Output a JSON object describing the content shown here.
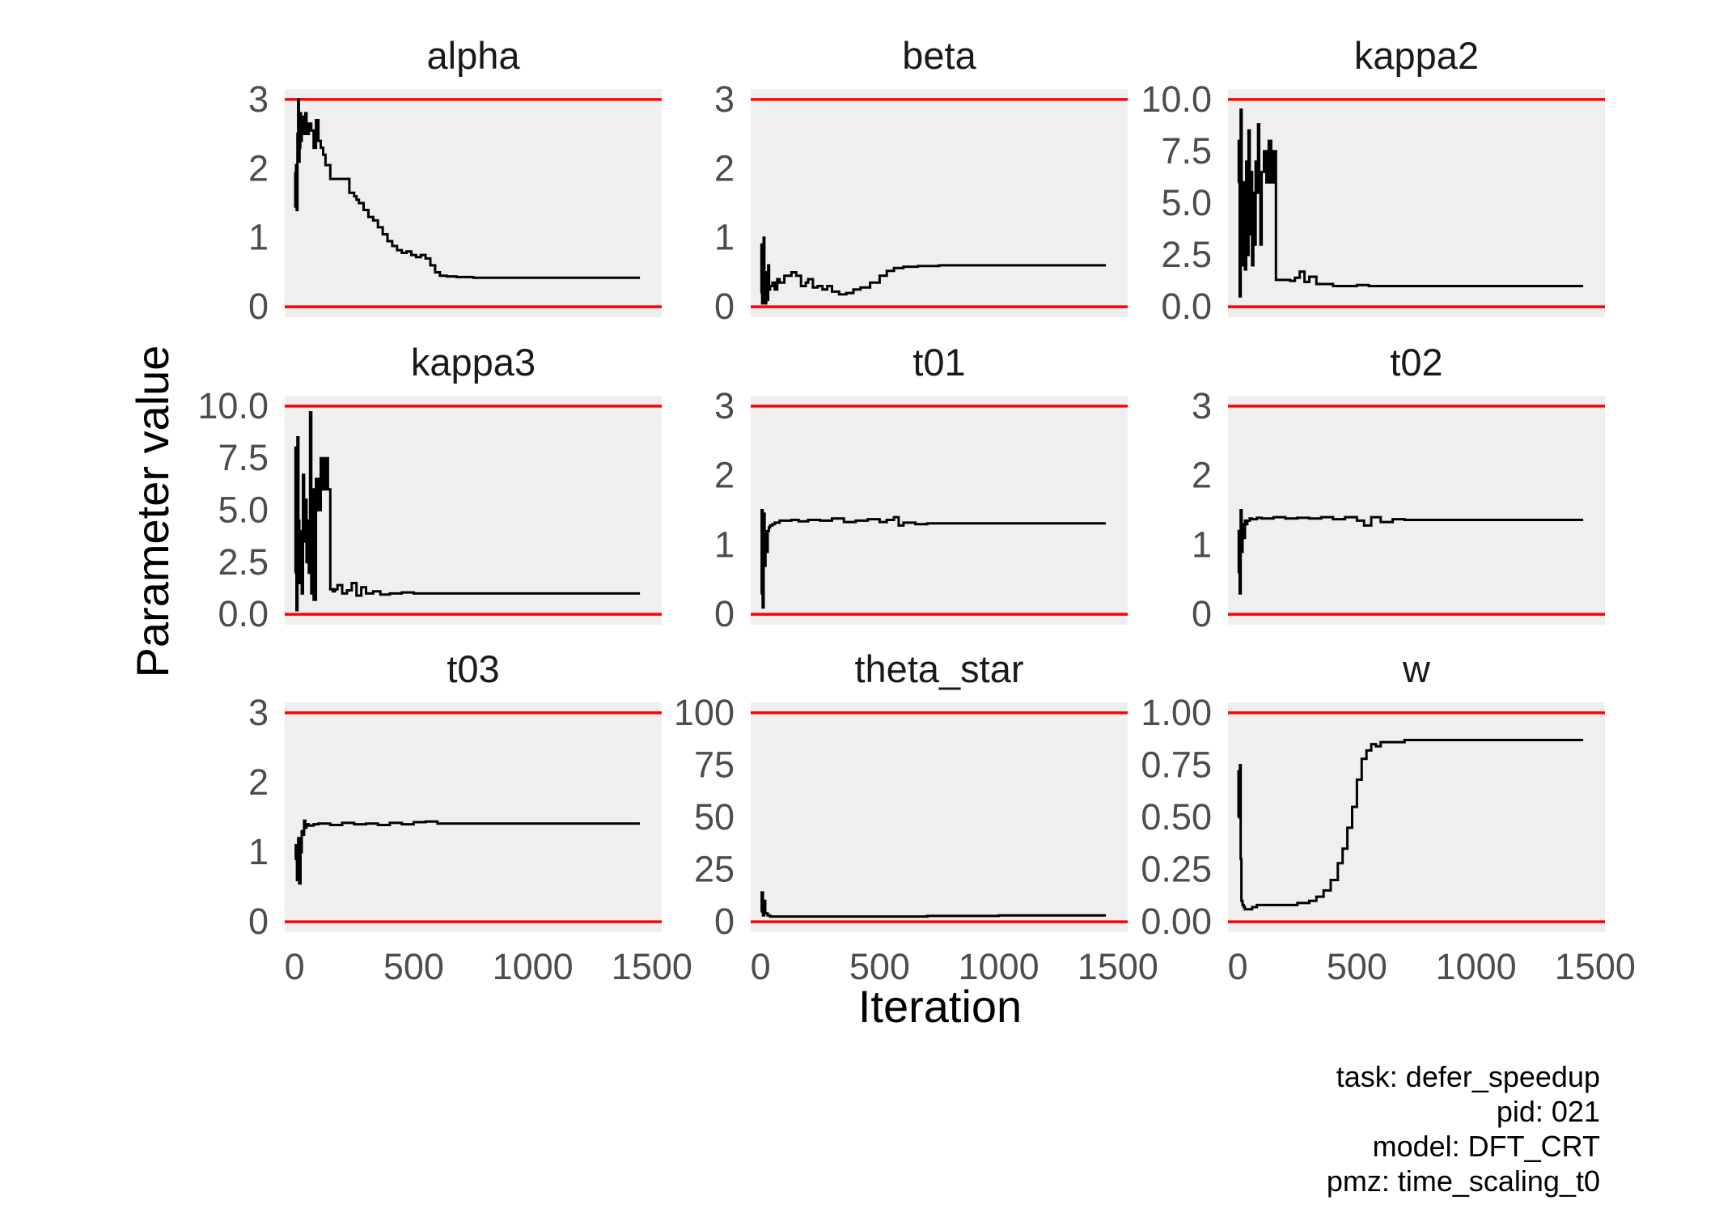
{
  "chart_data": {
    "type": "line",
    "layout": "facet-grid-3x3",
    "xlabel": "Iteration",
    "ylabel": "Parameter value",
    "xlim": [
      0,
      1500
    ],
    "x_ticks": [
      0,
      500,
      1000,
      1500
    ],
    "x_tick_labels": [
      "0",
      "500",
      "1000",
      "1500"
    ],
    "line_color": "#000000",
    "bound_color": "#ff0000",
    "panel_background": "#efefef",
    "grid": false,
    "caption_lines": [
      "task: defer_speedup",
      "pid: 021",
      "model: DFT_CRT",
      "pmz: time_scaling_t0"
    ],
    "panels": [
      {
        "title": "alpha",
        "ylim": [
          0,
          3
        ],
        "bounds": [
          0,
          3
        ],
        "y_ticks": [
          0,
          1,
          2,
          3
        ],
        "y_tick_labels": [
          "0",
          "1",
          "2",
          "3"
        ],
        "x": [
          1,
          3,
          6,
          9,
          12,
          15,
          18,
          21,
          24,
          27,
          30,
          35,
          40,
          45,
          50,
          60,
          70,
          80,
          90,
          100,
          110,
          120,
          130,
          150,
          170,
          200,
          230,
          250,
          260,
          270,
          290,
          310,
          330,
          350,
          370,
          390,
          410,
          430,
          450,
          470,
          490,
          510,
          530,
          550,
          570,
          590,
          610,
          640,
          680,
          750,
          850,
          1000,
          1200,
          1450
        ],
        "y": [
          1.95,
          1.45,
          2.05,
          1.4,
          2.5,
          3.0,
          2.1,
          2.3,
          2.8,
          2.4,
          2.75,
          2.5,
          2.65,
          2.8,
          2.5,
          2.65,
          2.55,
          2.3,
          2.7,
          2.4,
          2.3,
          2.2,
          2.05,
          1.85,
          1.85,
          1.85,
          1.65,
          1.6,
          1.55,
          1.5,
          1.4,
          1.3,
          1.25,
          1.15,
          1.05,
          0.95,
          0.88,
          0.82,
          0.78,
          0.8,
          0.75,
          0.72,
          0.75,
          0.7,
          0.6,
          0.5,
          0.45,
          0.44,
          0.43,
          0.42,
          0.42,
          0.42,
          0.42,
          0.42
        ]
      },
      {
        "title": "beta",
        "ylim": [
          0,
          3
        ],
        "bounds": [
          0,
          3
        ],
        "y_ticks": [
          0,
          1,
          2,
          3
        ],
        "y_tick_labels": [
          "0",
          "1",
          "2",
          "3"
        ],
        "x": [
          1,
          4,
          7,
          10,
          13,
          16,
          20,
          24,
          28,
          32,
          36,
          40,
          50,
          60,
          70,
          80,
          100,
          130,
          150,
          170,
          190,
          200,
          220,
          240,
          260,
          280,
          300,
          330,
          360,
          390,
          420,
          460,
          500,
          530,
          560,
          600,
          660,
          750,
          900,
          1100,
          1300,
          1450
        ],
        "y": [
          0.2,
          0.9,
          0.05,
          0.8,
          1.0,
          0.3,
          0.05,
          0.5,
          0.1,
          0.6,
          0.25,
          0.3,
          0.35,
          0.25,
          0.4,
          0.35,
          0.45,
          0.5,
          0.45,
          0.3,
          0.35,
          0.4,
          0.28,
          0.3,
          0.25,
          0.3,
          0.22,
          0.18,
          0.2,
          0.25,
          0.28,
          0.35,
          0.45,
          0.52,
          0.56,
          0.58,
          0.59,
          0.6,
          0.6,
          0.6,
          0.6,
          0.6
        ]
      },
      {
        "title": "kappa2",
        "ylim": [
          0,
          10
        ],
        "bounds": [
          0,
          10
        ],
        "y_ticks": [
          0,
          2.5,
          5,
          7.5,
          10
        ],
        "y_tick_labels": [
          "0.0",
          "2.5",
          "5.0",
          "7.5",
          "10.0"
        ],
        "x": [
          1,
          4,
          8,
          12,
          16,
          20,
          25,
          30,
          35,
          40,
          45,
          50,
          55,
          60,
          65,
          70,
          75,
          80,
          85,
          90,
          95,
          100,
          110,
          120,
          130,
          140,
          150,
          160,
          170,
          180,
          190,
          200,
          220,
          240,
          260,
          280,
          300,
          330,
          360,
          400,
          450,
          500,
          550,
          600,
          700,
          800,
          1000,
          1200,
          1450
        ],
        "y": [
          6.0,
          8.0,
          0.5,
          9.5,
          5.0,
          2.0,
          6.0,
          1.8,
          7.0,
          2.5,
          8.5,
          3.5,
          6.5,
          2.0,
          5.5,
          3.0,
          7.0,
          5.5,
          8.8,
          6.0,
          3.0,
          6.5,
          7.5,
          6.0,
          8.0,
          6.0,
          7.5,
          1.3,
          1.3,
          1.3,
          1.3,
          1.3,
          1.25,
          1.4,
          1.7,
          1.2,
          1.45,
          1.1,
          1.1,
          1.0,
          1.0,
          1.05,
          1.0,
          1.0,
          1.0,
          1.0,
          1.0,
          1.0,
          1.0
        ]
      },
      {
        "title": "kappa3",
        "ylim": [
          0,
          10
        ],
        "bounds": [
          0,
          10
        ],
        "y_ticks": [
          0,
          2.5,
          5,
          7.5,
          10
        ],
        "y_tick_labels": [
          "0.0",
          "2.5",
          "5.0",
          "7.5",
          "10.0"
        ],
        "x": [
          1,
          4,
          8,
          12,
          16,
          20,
          25,
          30,
          35,
          40,
          45,
          50,
          55,
          60,
          65,
          70,
          75,
          80,
          90,
          100,
          110,
          120,
          130,
          140,
          150,
          160,
          170,
          180,
          200,
          220,
          240,
          260,
          280,
          300,
          330,
          360,
          400,
          450,
          500,
          550,
          600,
          700,
          800,
          1000,
          1200,
          1450
        ],
        "y": [
          2.0,
          8.0,
          0.2,
          8.5,
          4.5,
          1.5,
          4.0,
          1.0,
          6.7,
          3.5,
          5.5,
          2.5,
          4.5,
          2.0,
          9.7,
          1.0,
          6.0,
          0.7,
          6.5,
          5.0,
          7.5,
          6.0,
          7.5,
          6.0,
          1.2,
          1.1,
          1.2,
          1.4,
          1.0,
          1.15,
          1.5,
          0.9,
          1.3,
          1.0,
          1.1,
          0.95,
          1.0,
          1.05,
          1.0,
          1.0,
          1.0,
          1.0,
          1.0,
          1.0,
          1.0,
          1.0
        ]
      },
      {
        "title": "t01",
        "ylim": [
          0,
          3
        ],
        "bounds": [
          0,
          3
        ],
        "y_ticks": [
          0,
          1,
          2,
          3
        ],
        "y_tick_labels": [
          "0",
          "1",
          "2",
          "3"
        ],
        "x": [
          1,
          5,
          9,
          13,
          17,
          21,
          25,
          30,
          35,
          40,
          50,
          60,
          80,
          100,
          130,
          160,
          200,
          250,
          300,
          350,
          400,
          450,
          500,
          530,
          560,
          580,
          600,
          650,
          700,
          800,
          900,
          1100,
          1300,
          1450
        ],
        "y": [
          0.3,
          1.5,
          0.1,
          1.45,
          0.7,
          1.2,
          0.9,
          1.2,
          1.25,
          1.28,
          1.3,
          1.32,
          1.35,
          1.35,
          1.36,
          1.34,
          1.36,
          1.35,
          1.38,
          1.33,
          1.35,
          1.37,
          1.33,
          1.36,
          1.4,
          1.28,
          1.32,
          1.3,
          1.31,
          1.31,
          1.31,
          1.31,
          1.31,
          1.31
        ]
      },
      {
        "title": "t02",
        "ylim": [
          0,
          3
        ],
        "bounds": [
          0,
          3
        ],
        "y_ticks": [
          0,
          1,
          2,
          3
        ],
        "y_tick_labels": [
          "0",
          "1",
          "2",
          "3"
        ],
        "x": [
          1,
          4,
          8,
          12,
          16,
          20,
          25,
          30,
          35,
          40,
          50,
          60,
          80,
          100,
          150,
          200,
          250,
          300,
          350,
          400,
          450,
          500,
          530,
          560,
          600,
          650,
          700,
          800,
          1000,
          1200,
          1450
        ],
        "y": [
          0.6,
          1.2,
          0.3,
          1.5,
          0.9,
          1.3,
          1.1,
          1.35,
          1.3,
          1.35,
          1.38,
          1.37,
          1.39,
          1.38,
          1.4,
          1.38,
          1.39,
          1.38,
          1.4,
          1.37,
          1.4,
          1.35,
          1.28,
          1.4,
          1.33,
          1.37,
          1.36,
          1.36,
          1.36,
          1.36,
          1.36
        ]
      },
      {
        "title": "t03",
        "ylim": [
          0,
          3
        ],
        "bounds": [
          0,
          3
        ],
        "y_ticks": [
          0,
          1,
          2,
          3
        ],
        "y_tick_labels": [
          "0",
          "1",
          "2",
          "3"
        ],
        "x": [
          1,
          5,
          10,
          15,
          20,
          25,
          30,
          35,
          40,
          45,
          50,
          60,
          80,
          100,
          150,
          200,
          250,
          300,
          350,
          400,
          450,
          500,
          550,
          600,
          700,
          800,
          1000,
          1200,
          1450
        ],
        "y": [
          0.9,
          1.1,
          0.6,
          1.2,
          0.55,
          1.0,
          1.3,
          1.25,
          1.45,
          1.35,
          1.4,
          1.38,
          1.4,
          1.41,
          1.39,
          1.42,
          1.4,
          1.41,
          1.39,
          1.42,
          1.4,
          1.43,
          1.44,
          1.41,
          1.41,
          1.41,
          1.41,
          1.41,
          1.41
        ]
      },
      {
        "title": "theta_star",
        "ylim": [
          0,
          100
        ],
        "bounds": [
          0,
          100
        ],
        "y_ticks": [
          0,
          25,
          50,
          75,
          100
        ],
        "y_tick_labels": [
          "0",
          "25",
          "50",
          "75",
          "100"
        ],
        "x": [
          1,
          5,
          10,
          15,
          20,
          30,
          40,
          60,
          100,
          200,
          400,
          700,
          1000,
          1200,
          1450
        ],
        "y": [
          5,
          14,
          3,
          10,
          4,
          3,
          2.5,
          2.5,
          2.5,
          2.5,
          2.5,
          2.8,
          3,
          3,
          3
        ]
      },
      {
        "title": "w",
        "ylim": [
          0,
          1
        ],
        "bounds": [
          0,
          1
        ],
        "y_ticks": [
          0,
          0.25,
          0.5,
          0.75,
          1
        ],
        "y_tick_labels": [
          "0.00",
          "0.25",
          "0.50",
          "0.75",
          "1.00"
        ],
        "x": [
          1,
          3,
          6,
          9,
          12,
          15,
          20,
          25,
          30,
          40,
          50,
          60,
          80,
          100,
          150,
          200,
          250,
          300,
          330,
          360,
          390,
          420,
          440,
          460,
          480,
          500,
          520,
          540,
          560,
          580,
          600,
          650,
          700,
          800,
          1000,
          1200,
          1450
        ],
        "y": [
          0.5,
          0.72,
          0.6,
          0.75,
          0.3,
          0.1,
          0.08,
          0.07,
          0.06,
          0.06,
          0.06,
          0.07,
          0.08,
          0.08,
          0.08,
          0.08,
          0.09,
          0.1,
          0.12,
          0.15,
          0.2,
          0.28,
          0.35,
          0.45,
          0.55,
          0.68,
          0.78,
          0.82,
          0.85,
          0.84,
          0.86,
          0.86,
          0.87,
          0.87,
          0.87,
          0.87,
          0.87
        ]
      }
    ]
  }
}
